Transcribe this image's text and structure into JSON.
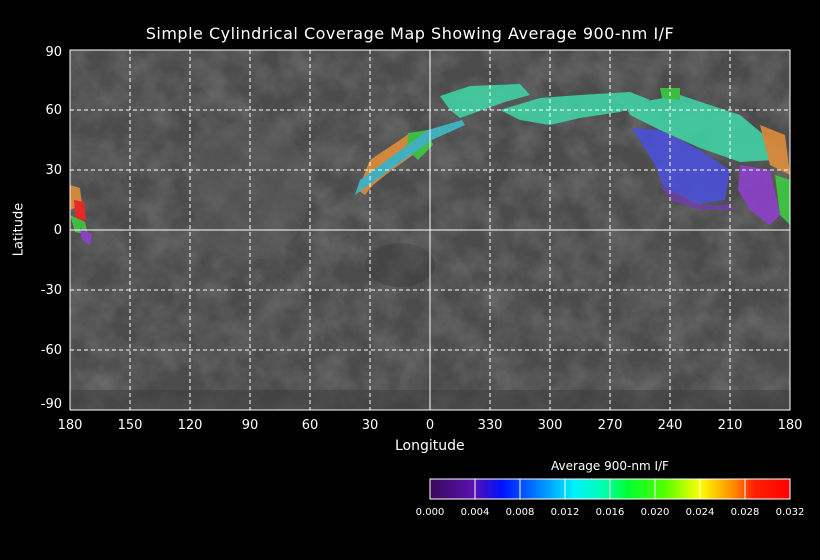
{
  "title": "Simple Cylindrical Coverage Map Showing Average 900-nm I/F",
  "x_axis": {
    "label": "Longitude",
    "ticks": [
      "180",
      "150",
      "120",
      "90",
      "60",
      "30",
      "0",
      "330",
      "300",
      "270",
      "240",
      "210",
      "180"
    ]
  },
  "y_axis": {
    "label": "Latitude",
    "ticks": [
      "90",
      "60",
      "30",
      "0",
      "-30",
      "-60",
      "-90"
    ]
  },
  "colorbar": {
    "title": "Average 900-nm I/F",
    "ticks": [
      "0.000",
      "0.004",
      "0.008",
      "0.012",
      "0.016",
      "0.020",
      "0.024",
      "0.028",
      "0.032"
    ],
    "range": [
      0.0,
      0.032
    ],
    "colors": [
      "#3a0a5a",
      "#5a10b0",
      "#0010ff",
      "#0080ff",
      "#00f0ff",
      "#00ffb0",
      "#00ff30",
      "#20e000",
      "#b0ff00",
      "#ffff00",
      "#ffb000",
      "#ff6000",
      "#ff1000",
      "#ff0000"
    ]
  },
  "map": {
    "lon_range": [
      180,
      -180
    ],
    "lat_range": [
      -90,
      90
    ],
    "grid_step_deg": 30,
    "background": "#4a4a4a"
  }
}
